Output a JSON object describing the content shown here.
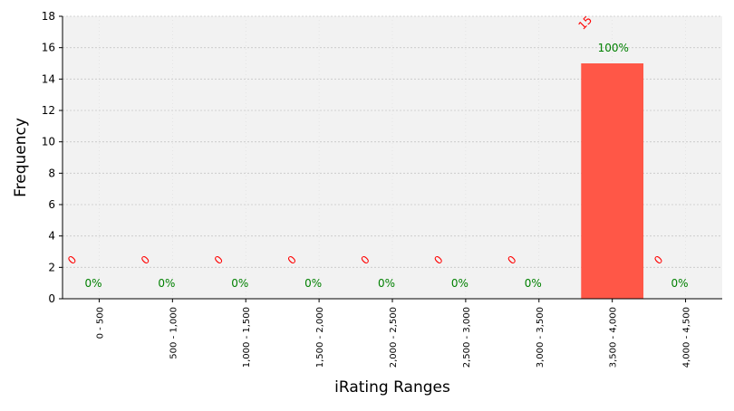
{
  "chart_data": {
    "type": "bar",
    "xlabel": "iRating Ranges",
    "ylabel": "Frequency",
    "ylim": [
      0,
      18
    ],
    "yticks": [
      0,
      2,
      4,
      6,
      8,
      10,
      12,
      14,
      16,
      18
    ],
    "grid": true,
    "categories": [
      "0 - 500",
      "500 - 1,000",
      "1,000 - 1,500",
      "1,500 - 2,000",
      "2,000 - 2,500",
      "2,500 - 3,000",
      "3,000 - 3,500",
      "3,500 - 4,000",
      "4,000 - 4,500"
    ],
    "values": [
      0,
      0,
      0,
      0,
      0,
      0,
      0,
      15,
      0
    ],
    "count_labels": [
      "0",
      "0",
      "0",
      "0",
      "0",
      "0",
      "0",
      "15",
      "0"
    ],
    "percent_labels": [
      "0%",
      "0%",
      "0%",
      "0%",
      "0%",
      "0%",
      "0%",
      "100%",
      "0%"
    ],
    "colors": {
      "bar": "#ff5747",
      "count_label": "#ff0000",
      "percent_label": "#008000",
      "plot_background": "#f2f2f2",
      "grid": "#c8c8c8"
    }
  }
}
